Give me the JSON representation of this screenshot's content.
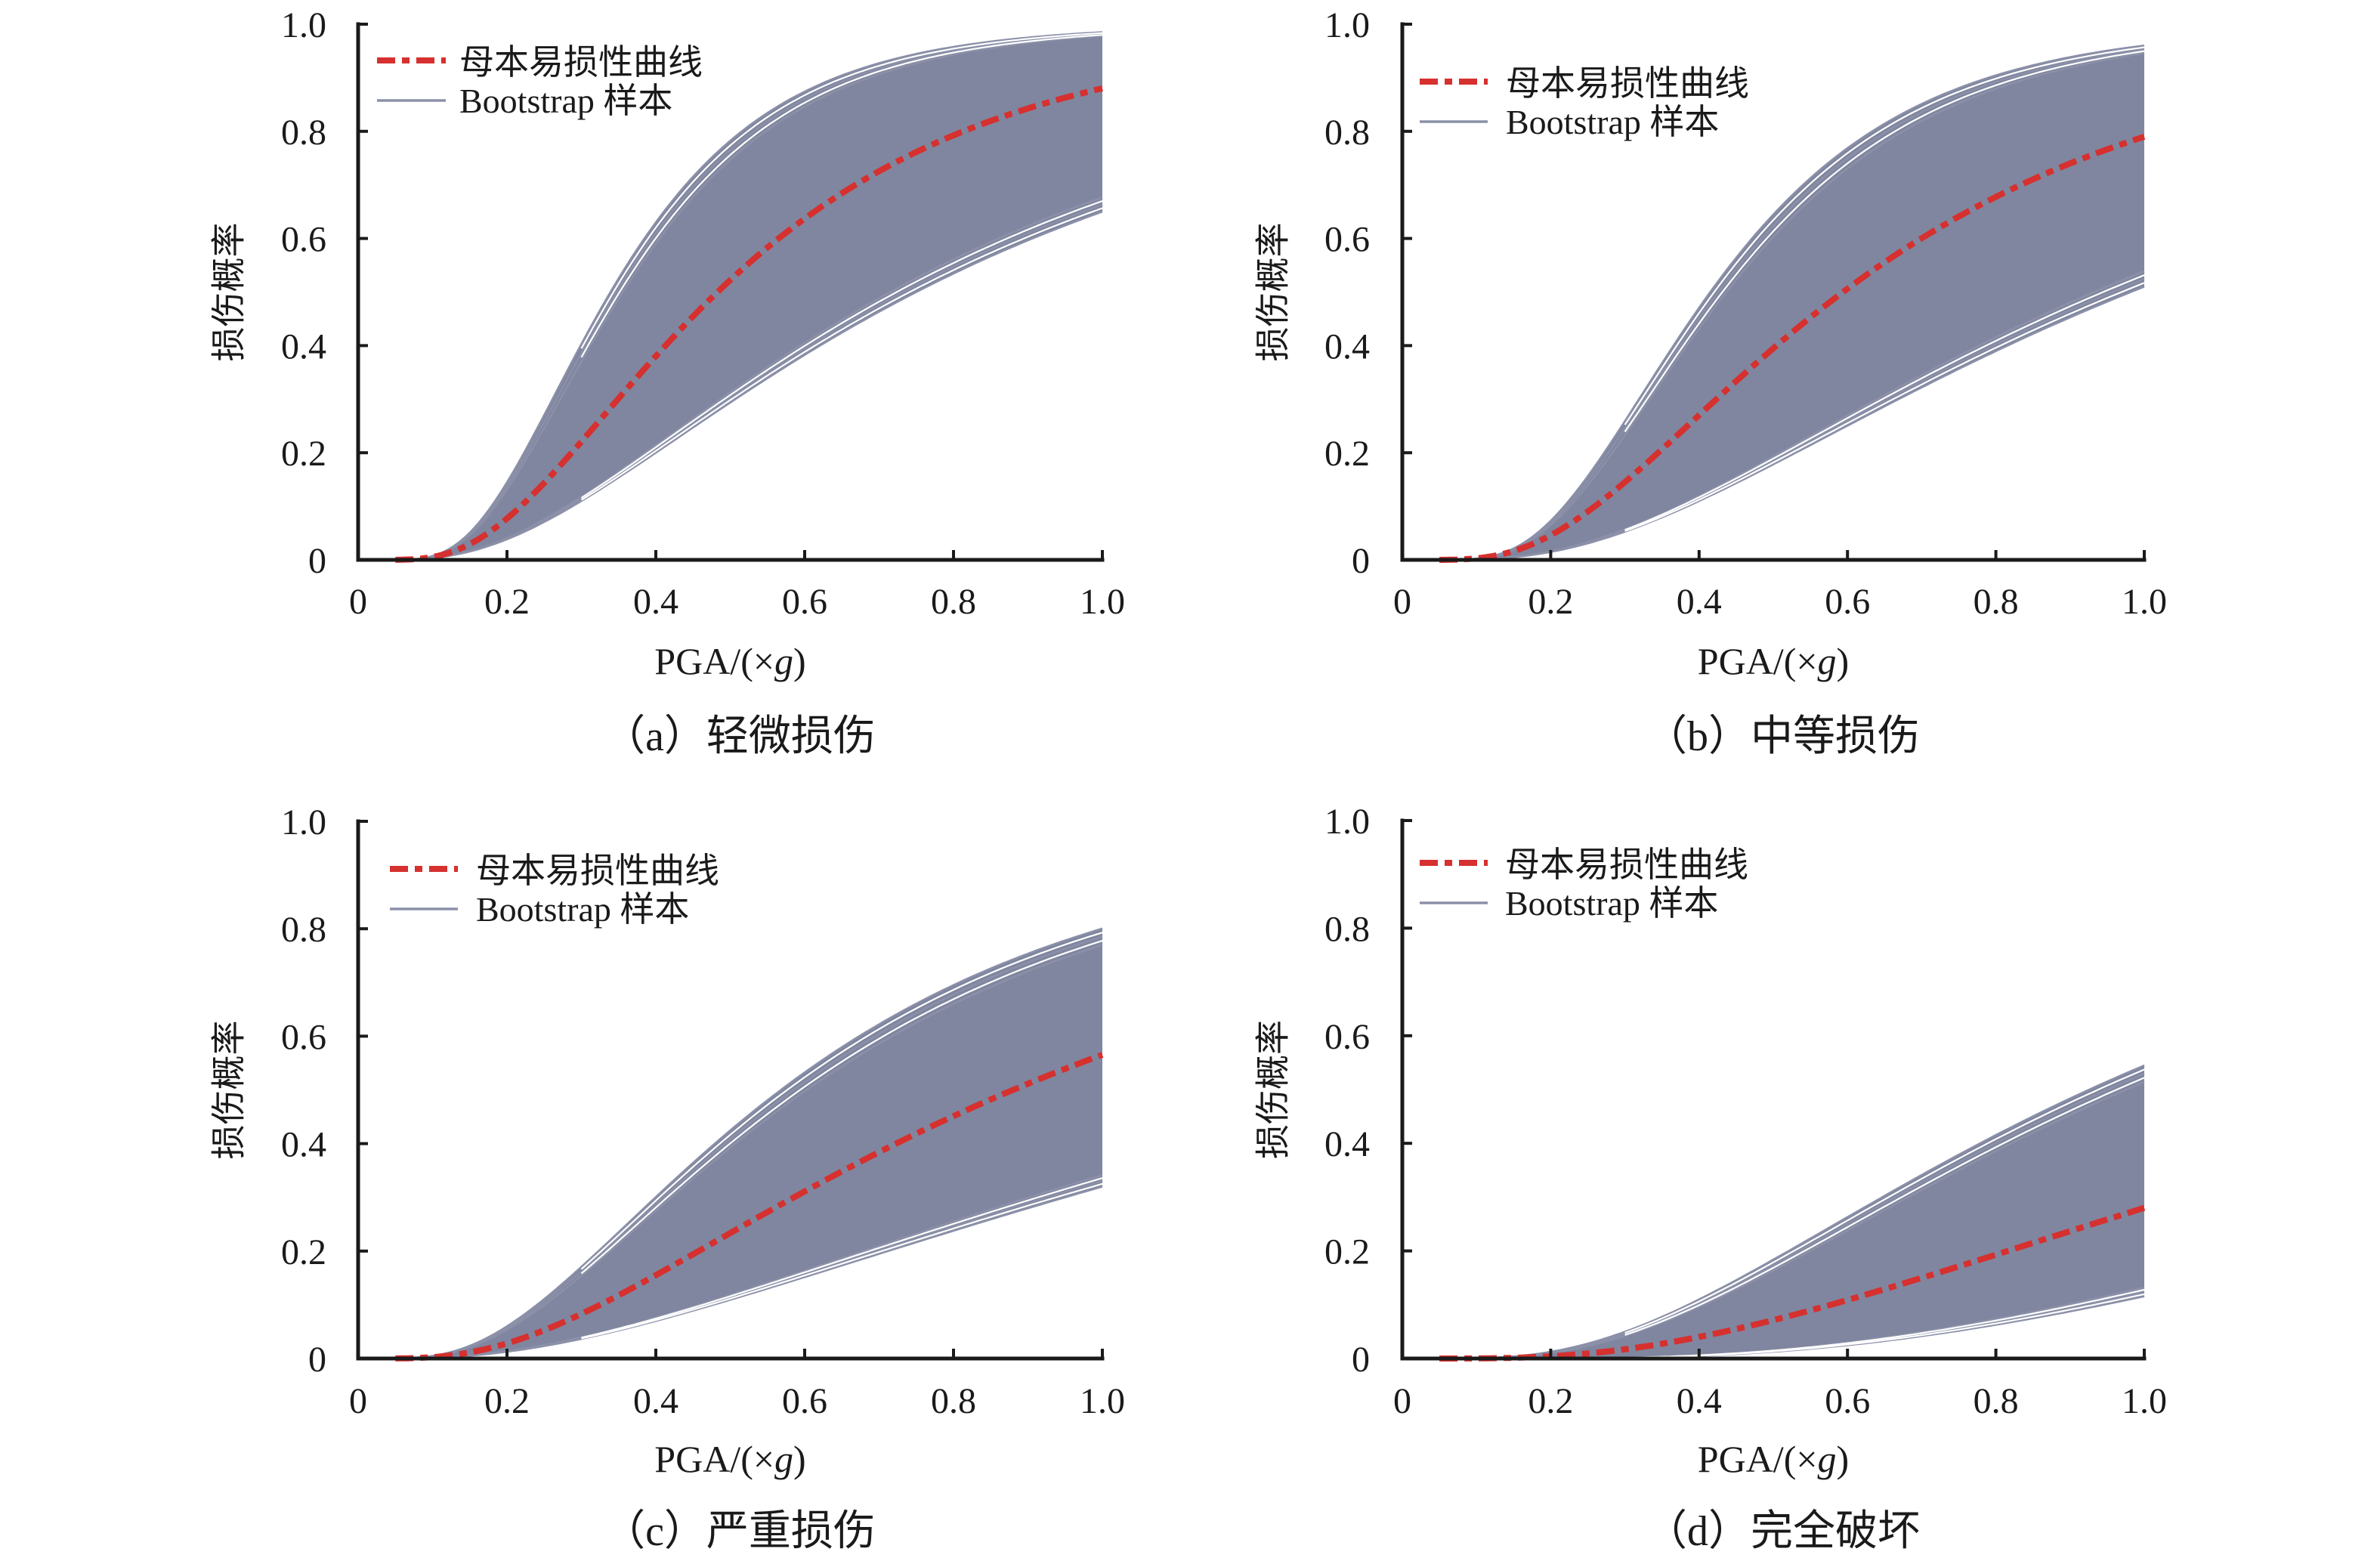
{
  "figure": {
    "colors": {
      "band": "#80869f",
      "sample_line": "#8b90a8",
      "parent_line": "#d6302f",
      "axis": "#1a1a1a"
    },
    "legend": {
      "parent_label": "母本易损性曲线",
      "sample_label": "Bootstrap 样本"
    }
  },
  "chart_data": [
    {
      "id": "a",
      "type": "line",
      "title": "（a）轻微损伤",
      "xlabel": "PGA/(×g)",
      "xlabel_parts": [
        "PGA/(×",
        "g",
        ")"
      ],
      "ylabel": "损伤概率",
      "xlim": [
        0,
        1.0
      ],
      "ylim": [
        0,
        1.0
      ],
      "xticks": [
        0,
        0.2,
        0.4,
        0.6,
        0.8,
        1.0
      ],
      "xtick_labels": [
        "0",
        "0.2",
        "0.4",
        "0.6",
        "0.8",
        "1.0"
      ],
      "yticks": [
        0,
        0.2,
        0.4,
        0.6,
        0.8,
        1.0
      ],
      "ytick_labels": [
        "0",
        "0.2",
        "0.4",
        "0.6",
        "0.8",
        "1.0"
      ],
      "grid": false,
      "legend_position": "top-left",
      "x": [
        0.1,
        0.2,
        0.3,
        0.4,
        0.5,
        0.6,
        0.7,
        0.8,
        0.9,
        1.0
      ],
      "series": [
        {
          "name": "母本易损性曲线",
          "style": "dash-dot",
          "model": "lognormal",
          "median": 0.483,
          "beta": 0.619,
          "values": [
            0.005,
            0.077,
            0.221,
            0.38,
            0.522,
            0.637,
            0.725,
            0.792,
            0.843,
            0.88
          ]
        },
        {
          "name": "Bootstrap 样本 (upper envelope)",
          "model": "lognormal",
          "median": 0.339,
          "beta": 0.498,
          "values": [
            0.003,
            0.145,
            0.427,
            0.63,
            0.765,
            0.874,
            0.925,
            0.958,
            0.975,
            0.985
          ]
        },
        {
          "name": "Bootstrap 样本 (lower envelope)",
          "model": "lognormal",
          "median": 0.75,
          "beta": 0.747,
          "values": [
            0.001,
            0.038,
            0.11,
            0.2,
            0.296,
            0.38,
            0.462,
            0.535,
            0.597,
            0.65
          ]
        }
      ]
    },
    {
      "id": "b",
      "type": "line",
      "title": "（b）中等损伤",
      "xlabel": "PGA/(×g)",
      "xlabel_parts": [
        "PGA/(×",
        "g",
        ")"
      ],
      "ylabel": "损伤概率",
      "xlim": [
        0,
        1.0
      ],
      "ylim": [
        0,
        1.0
      ],
      "xticks": [
        0,
        0.2,
        0.4,
        0.6,
        0.8,
        1.0
      ],
      "xtick_labels": [
        "0",
        "0.2",
        "0.4",
        "0.6",
        "0.8",
        "1.0"
      ],
      "yticks": [
        0,
        0.2,
        0.4,
        0.6,
        0.8,
        1.0
      ],
      "ytick_labels": [
        "0",
        "0.2",
        "0.4",
        "0.6",
        "0.8",
        "1.0"
      ],
      "grid": false,
      "legend_position": "top-left",
      "x": [
        0.1,
        0.2,
        0.3,
        0.4,
        0.5,
        0.6,
        0.7,
        0.8,
        0.9,
        1.0
      ],
      "series": [
        {
          "name": "母本易损性曲线",
          "style": "dash-dot",
          "model": "lognormal",
          "median": 0.594,
          "beta": 0.646,
          "values": [
            0.003,
            0.046,
            0.145,
            0.27,
            0.395,
            0.506,
            0.6,
            0.678,
            0.74,
            0.79
          ]
        },
        {
          "name": "Bootstrap 样本 (upper envelope)",
          "model": "lognormal",
          "median": 0.415,
          "beta": 0.502,
          "values": [
            0.001,
            0.073,
            0.258,
            0.47,
            0.644,
            0.769,
            0.853,
            0.904,
            0.937,
            0.96
          ]
        },
        {
          "name": "Bootstrap 样本 (lower envelope)",
          "model": "lognormal",
          "median": 0.982,
          "beta": 0.732,
          "values": [
            0.001,
            0.015,
            0.053,
            0.11,
            0.178,
            0.25,
            0.322,
            0.39,
            0.453,
            0.51
          ]
        }
      ]
    },
    {
      "id": "c",
      "type": "line",
      "title": "（c）严重损伤",
      "xlabel": "PGA/(×g)",
      "xlabel_parts": [
        "PGA/(×",
        "g",
        ")"
      ],
      "ylabel": "损伤概率",
      "xlim": [
        0,
        1.0
      ],
      "ylim": [
        0,
        1.0
      ],
      "xticks": [
        0,
        0.2,
        0.4,
        0.6,
        0.8,
        1.0
      ],
      "xtick_labels": [
        "0",
        "0.2",
        "0.4",
        "0.6",
        "0.8",
        "1.0"
      ],
      "yticks": [
        0,
        0.2,
        0.4,
        0.6,
        0.8,
        1.0
      ],
      "ytick_labels": [
        "0",
        "0.2",
        "0.4",
        "0.6",
        "0.8",
        "1.0"
      ],
      "grid": false,
      "legend_position": "top-left",
      "x": [
        0.1,
        0.2,
        0.3,
        0.4,
        0.5,
        0.6,
        0.7,
        0.8,
        0.9,
        1.0
      ],
      "series": [
        {
          "name": "母本易损性曲线",
          "style": "dash-dot",
          "model": "lognormal",
          "median": 0.88,
          "beta": 0.777,
          "values": [
            0.003,
            0.028,
            0.083,
            0.155,
            0.233,
            0.311,
            0.384,
            0.451,
            0.512,
            0.565
          ]
        },
        {
          "name": "Bootstrap 样本 (upper envelope)",
          "model": "lognormal",
          "median": 0.568,
          "beta": 0.671,
          "values": [
            0.005,
            0.06,
            0.17,
            0.3,
            0.426,
            0.533,
            0.622,
            0.695,
            0.753,
            0.8
          ]
        },
        {
          "name": "Bootstrap 样本 (lower envelope)",
          "model": "lognormal",
          "median": 1.53,
          "beta": 0.909,
          "values": [
            0.001,
            0.013,
            0.036,
            0.07,
            0.109,
            0.152,
            0.195,
            0.238,
            0.28,
            0.32
          ]
        }
      ]
    },
    {
      "id": "d",
      "type": "line",
      "title": "（d）完全破坏",
      "xlabel": "PGA/(×g)",
      "xlabel_parts": [
        "PGA/(×",
        "g",
        ")"
      ],
      "ylabel": "损伤概率",
      "xlim": [
        0,
        1.0
      ],
      "ylim": [
        0,
        1.0
      ],
      "xticks": [
        0,
        0.2,
        0.4,
        0.6,
        0.8,
        1.0
      ],
      "xtick_labels": [
        "0",
        "0.2",
        "0.4",
        "0.6",
        "0.8",
        "1.0"
      ],
      "yticks": [
        0,
        0.2,
        0.4,
        0.6,
        0.8,
        1.0
      ],
      "ytick_labels": [
        "0",
        "0.2",
        "0.4",
        "0.6",
        "0.8",
        "1.0"
      ],
      "grid": false,
      "legend_position": "top-left",
      "x": [
        0.1,
        0.2,
        0.3,
        0.4,
        0.5,
        0.6,
        0.7,
        0.8,
        0.9,
        1.0
      ],
      "series": [
        {
          "name": "母本易损性曲线",
          "style": "dash-dot",
          "model": "lognormal",
          "median": 1.58,
          "beta": 0.785,
          "values": [
            0.0,
            0.004,
            0.017,
            0.04,
            0.071,
            0.109,
            0.15,
            0.193,
            0.237,
            0.28
          ]
        },
        {
          "name": "Bootstrap 样本 (upper envelope)",
          "model": "lognormal",
          "median": 0.926,
          "beta": 0.684,
          "values": [
            0.0,
            0.013,
            0.051,
            0.11,
            0.184,
            0.263,
            0.341,
            0.415,
            0.483,
            0.545
          ]
        },
        {
          "name": "Bootstrap 样本 (lower envelope)",
          "model": "lognormal",
          "median": 2.22,
          "beta": 0.666,
          "values": [
            0.0,
            0.0,
            0.001,
            0.005,
            0.013,
            0.025,
            0.042,
            0.063,
            0.087,
            0.115
          ]
        }
      ]
    }
  ]
}
